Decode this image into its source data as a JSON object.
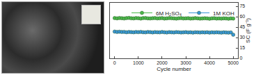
{
  "chart_data": {
    "type": "line",
    "x_label": "Cycle number",
    "y_label": "SC (F g⁻¹)",
    "x": [
      0,
      100,
      200,
      300,
      400,
      500,
      600,
      700,
      800,
      900,
      1000,
      1100,
      1200,
      1300,
      1400,
      1500,
      1600,
      1700,
      1800,
      1900,
      2000,
      2100,
      2200,
      2300,
      2400,
      2500,
      2600,
      2700,
      2800,
      2900,
      3000,
      3100,
      3200,
      3300,
      3400,
      3500,
      3600,
      3700,
      3800,
      3900,
      4000,
      4100,
      4200,
      4300,
      4400,
      4500,
      4600,
      4700,
      4800,
      4900,
      5000
    ],
    "series": [
      {
        "name": "6M H₂SO₄",
        "color": "#4cb84a",
        "marker": "circle",
        "values": [
          58,
          57.6,
          58.1,
          57.8,
          57.4,
          57.9,
          58.2,
          57.7,
          57.5,
          58,
          57.8,
          57.3,
          57.9,
          58.1,
          57.6,
          57.4,
          57.8,
          58,
          57.5,
          57.7,
          57.9,
          57.3,
          57.6,
          58,
          57.8,
          57.5,
          57.2,
          57.7,
          57.9,
          57.4,
          57.6,
          57.8,
          57.3,
          57.5,
          57.9,
          57.6,
          57.2,
          57.4,
          57.7,
          57.5,
          57.1,
          57.6,
          57.8,
          57.3,
          57.5,
          57.2,
          57.6,
          57.4,
          57.1,
          57.5,
          57.3
        ]
      },
      {
        "name": "1M KOH",
        "color": "#3a96d8",
        "marker": "circle",
        "values": [
          38.5,
          38,
          38.3,
          37.9,
          38.1,
          37.6,
          38,
          37.8,
          37.5,
          37.9,
          37.7,
          38.1,
          37.6,
          37.4,
          37.9,
          37.7,
          37.3,
          37.8,
          37.6,
          37.4,
          37.9,
          37.5,
          37.2,
          37.7,
          37.5,
          37.3,
          37.8,
          37.6,
          37.2,
          37.4,
          37.7,
          37.3,
          37.5,
          37.1,
          37.6,
          37.4,
          37.2,
          37.5,
          37.3,
          37.6,
          37.1,
          37.4,
          37.2,
          37.5,
          37.3,
          37,
          37.4,
          37.2,
          37,
          37.3,
          34
        ]
      }
    ],
    "xlim": [
      -200,
      5200
    ],
    "xticks": [
      0,
      1000,
      2000,
      3000,
      4000,
      5000
    ],
    "ylim": [
      0,
      80
    ],
    "yticks": [
      0,
      15,
      30,
      45,
      60,
      75
    ],
    "grid": false,
    "legend": "upper right"
  }
}
